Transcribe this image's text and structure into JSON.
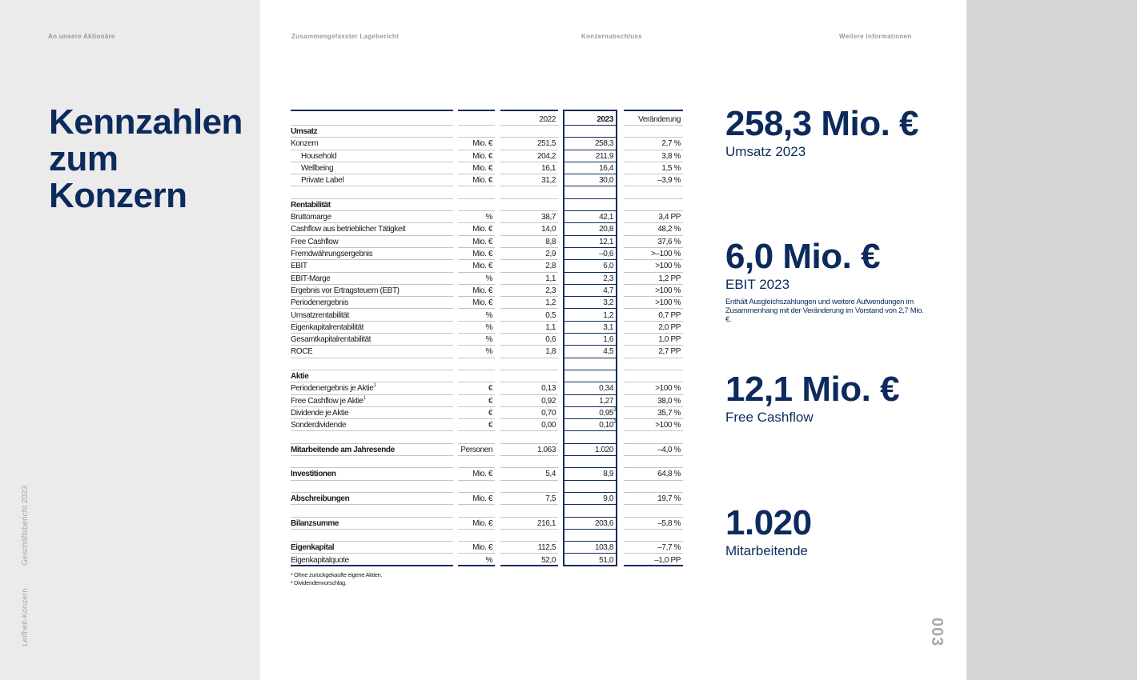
{
  "nav": [
    "An unsere Aktionäre",
    "Zusammengefasster Lagebericht",
    "Konzernabschluss",
    "Weitere Informationen"
  ],
  "title": [
    "Kennzahlen",
    "zum",
    "Konzern"
  ],
  "side": {
    "report": "Geschäftsbericht 2023",
    "section": "Leifheit-Konzern"
  },
  "page_number": "003",
  "colors": {
    "navy": "#0c2b5c",
    "left_panel": "#ebebeb",
    "right_panel": "#d5d5d7"
  },
  "table": {
    "header": [
      "",
      "",
      "2022",
      "2023",
      "Veränderung"
    ],
    "rows": [
      {
        "label": "Umsatz",
        "bold": true,
        "cells": [
          "",
          "",
          "",
          ""
        ]
      },
      {
        "label": "Konzern",
        "cells": [
          "Mio. €",
          "251,5",
          "258,3",
          "2,7 %"
        ]
      },
      {
        "label": "Household",
        "indent": true,
        "cells": [
          "Mio. €",
          "204,2",
          "211,9",
          "3,8 %"
        ]
      },
      {
        "label": "Wellbeing",
        "indent": true,
        "cells": [
          "Mio. €",
          "16,1",
          "16,4",
          "1,5 %"
        ]
      },
      {
        "label": "Private Label",
        "indent": true,
        "cells": [
          "Mio. €",
          "31,2",
          "30,0",
          "–3,9 %"
        ]
      },
      {
        "label": "",
        "cells": [
          "",
          "",
          "",
          ""
        ]
      },
      {
        "label": "Rentabilität",
        "bold": true,
        "cells": [
          "",
          "",
          "",
          ""
        ]
      },
      {
        "label": "Bruttomarge",
        "cells": [
          "%",
          "38,7",
          "42,1",
          "3,4 PP"
        ]
      },
      {
        "label": "Cashflow aus betrieblicher Tätigkeit",
        "cells": [
          "Mio. €",
          "14,0",
          "20,8",
          "48,2 %"
        ]
      },
      {
        "label": "Free Cashflow",
        "cells": [
          "Mio. €",
          "8,8",
          "12,1",
          "37,6 %"
        ]
      },
      {
        "label": "Fremdwährungsergebnis",
        "cells": [
          "Mio. €",
          "2,9",
          "–0,6",
          ">–100 %"
        ]
      },
      {
        "label": "EBIT",
        "cells": [
          "Mio. €",
          "2,8",
          "6,0",
          ">100 %"
        ]
      },
      {
        "label": "EBIT-Marge",
        "cells": [
          "%",
          "1,1",
          "2,3",
          "1,2 PP"
        ]
      },
      {
        "label": "Ergebnis vor Ertragsteuern (EBT)",
        "cells": [
          "Mio. €",
          "2,3",
          "4,7",
          ">100 %"
        ]
      },
      {
        "label": "Periodenergebnis",
        "cells": [
          "Mio. €",
          "1,2",
          "3,2",
          ">100 %"
        ]
      },
      {
        "label": "Umsatzrentabilität",
        "cells": [
          "%",
          "0,5",
          "1,2",
          "0,7 PP"
        ]
      },
      {
        "label": "Eigenkapitalrentabilität",
        "cells": [
          "%",
          "1,1",
          "3,1",
          "2,0 PP"
        ]
      },
      {
        "label": "Gesamtkapitalrentabilität",
        "cells": [
          "%",
          "0,6",
          "1,6",
          "1,0 PP"
        ]
      },
      {
        "label": "ROCE",
        "cells": [
          "%",
          "1,8",
          "4,5",
          "2,7 PP"
        ]
      },
      {
        "label": "",
        "cells": [
          "",
          "",
          "",
          ""
        ]
      },
      {
        "label": "Aktie",
        "bold": true,
        "cells": [
          "",
          "",
          "",
          ""
        ]
      },
      {
        "label": "Periodenergebnis je Aktie",
        "sup": "1",
        "cells": [
          "€",
          "0,13",
          "0,34",
          ">100 %"
        ]
      },
      {
        "label": "Free Cashflow je Aktie",
        "sup": "1",
        "cells": [
          "€",
          "0,92",
          "1,27",
          "38,0 %"
        ]
      },
      {
        "label": "Dividende je Aktie",
        "cells": [
          "€",
          "0,70",
          "0,95",
          "35,7 %"
        ],
        "sup2023": "2"
      },
      {
        "label": "Sonderdividende",
        "cells": [
          "€",
          "0,00",
          "0,10",
          ">100 %"
        ],
        "sup2023": "2"
      },
      {
        "label": "",
        "cells": [
          "",
          "",
          "",
          ""
        ]
      },
      {
        "label": "Mitarbeitende am Jahresende",
        "bold": true,
        "cells": [
          "Personen",
          "1.063",
          "1.020",
          "–4,0 %"
        ]
      },
      {
        "label": "",
        "cells": [
          "",
          "",
          "",
          ""
        ]
      },
      {
        "label": "Investitionen",
        "bold": true,
        "cells": [
          "Mio. €",
          "5,4",
          "8,9",
          "64,8 %"
        ]
      },
      {
        "label": "",
        "cells": [
          "",
          "",
          "",
          ""
        ]
      },
      {
        "label": "Abschreibungen",
        "bold": true,
        "cells": [
          "Mio. €",
          "7,5",
          "9,0",
          "19,7 %"
        ]
      },
      {
        "label": "",
        "cells": [
          "",
          "",
          "",
          ""
        ]
      },
      {
        "label": "Bilanzsumme",
        "bold": true,
        "cells": [
          "Mio. €",
          "216,1",
          "203,6",
          "–5,8 %"
        ]
      },
      {
        "label": "",
        "cells": [
          "",
          "",
          "",
          ""
        ]
      },
      {
        "label": "Eigenkapital",
        "bold": true,
        "cells": [
          "Mio. €",
          "112,5",
          "103,8",
          "–7,7 %"
        ]
      },
      {
        "label": "Eigenkapitalquote",
        "cells": [
          "%",
          "52,0",
          "51,0",
          "–1,0 PP"
        ]
      }
    ],
    "footnotes": [
      "¹ Ohne zurückgekaufte eigene Aktien.",
      "² Dividendenvorschlag."
    ]
  },
  "kpis": [
    {
      "value": "258,3 Mio. €",
      "label": "Umsatz 2023"
    },
    {
      "value": "6,0 Mio. €",
      "label": "EBIT 2023",
      "note": "Enthält Ausgleichszahlungen und weitere Aufwendungen im Zusammenhang mit der Veränderung im Vorstand von 2,7 Mio. €."
    },
    {
      "value": "12,1 Mio. €",
      "label": "Free Cashflow"
    },
    {
      "value": "1.020",
      "label": "Mitarbeitende"
    }
  ]
}
